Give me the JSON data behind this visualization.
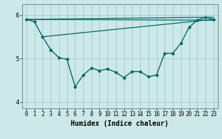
{
  "title": "",
  "xlabel": "Humidex (Indice chaleur)",
  "ylabel": "",
  "xlim": [
    -0.5,
    23.5
  ],
  "ylim": [
    3.85,
    6.25
  ],
  "yticks": [
    4,
    5,
    6
  ],
  "xtick_labels": [
    "0",
    "1",
    "2",
    "3",
    "4",
    "5",
    "6",
    "7",
    "8",
    "9",
    "10",
    "11",
    "12",
    "13",
    "14",
    "15",
    "16",
    "17",
    "18",
    "19",
    "20",
    "21",
    "22",
    "23"
  ],
  "bg_color": "#cce8e8",
  "grid_color": "#aacccc",
  "line_color": "#006666",
  "main_series": {
    "x": [
      0,
      1,
      2,
      3,
      4,
      5,
      6,
      7,
      8,
      9,
      10,
      11,
      12,
      13,
      14,
      15,
      16,
      17,
      18,
      19,
      20,
      21,
      22,
      23
    ],
    "y": [
      5.9,
      5.85,
      5.5,
      5.2,
      5.02,
      4.98,
      4.35,
      4.62,
      4.78,
      4.72,
      4.76,
      4.68,
      4.56,
      4.7,
      4.7,
      4.58,
      4.62,
      5.12,
      5.12,
      5.35,
      5.72,
      5.88,
      5.95,
      5.9
    ],
    "lw": 1.0
  },
  "trend_lines": [
    {
      "x": [
        0,
        23
      ],
      "y": [
        5.9,
        5.95
      ]
    },
    {
      "x": [
        0,
        23
      ],
      "y": [
        5.9,
        5.88
      ]
    },
    {
      "x": [
        2,
        23
      ],
      "y": [
        5.5,
        5.9
      ]
    }
  ],
  "marker_size": 2.5,
  "tick_fontsize": 5.5,
  "label_fontsize": 7.0
}
